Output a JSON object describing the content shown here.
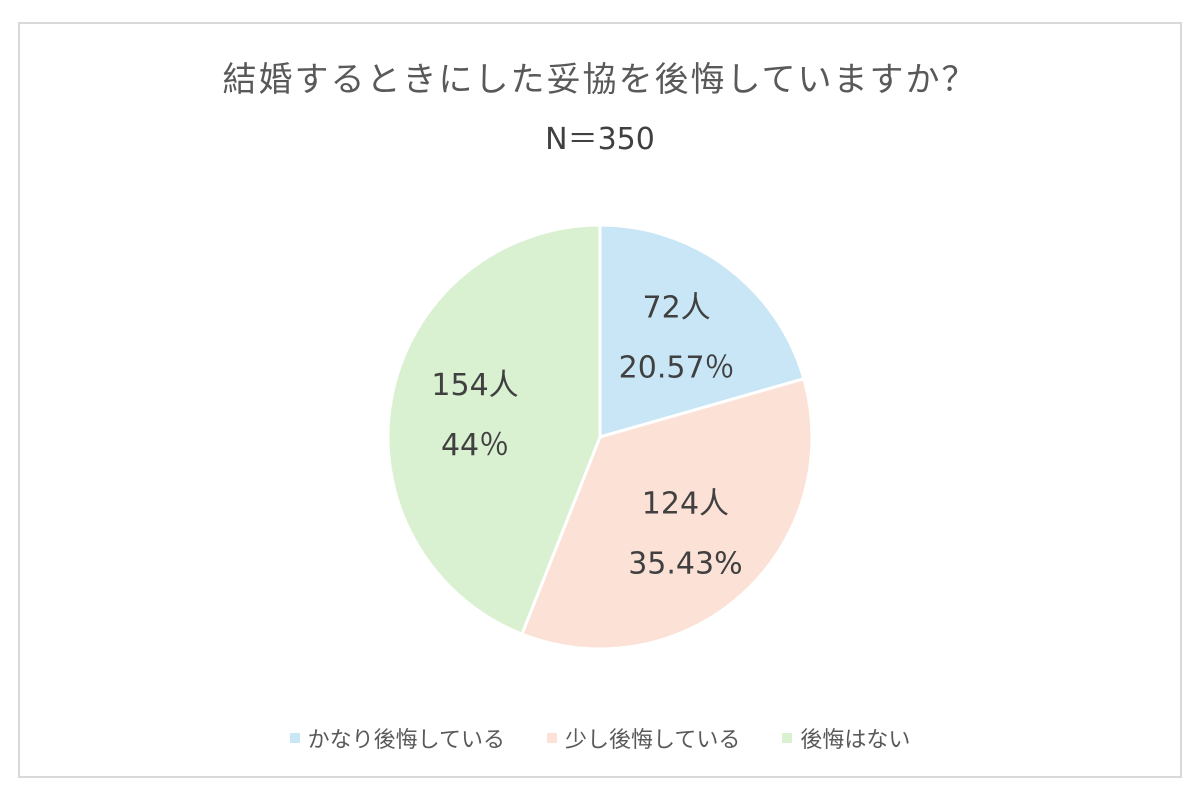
{
  "chart_data": {
    "type": "pie",
    "title": "結婚するときにした妥協を後悔していますか？",
    "subtitle": "N＝350",
    "slices": [
      {
        "name": "かなり後悔している",
        "count_label": "72人",
        "percent_label": "20.57％",
        "value": 20.57,
        "color": "#c9e6f6"
      },
      {
        "name": "少し後悔している",
        "count_label": "124人",
        "percent_label": "35.43%",
        "value": 35.43,
        "color": "#fbe1d6"
      },
      {
        "name": "後悔はない",
        "count_label": "154人",
        "percent_label": "44％",
        "value": 44,
        "color": "#d9f1d1"
      }
    ],
    "legend_placement": "bottom"
  }
}
